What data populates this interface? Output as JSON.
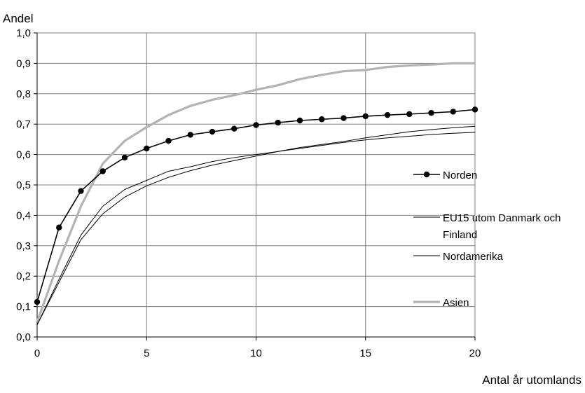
{
  "chart_data": {
    "type": "line",
    "title": "",
    "xlabel": "Antal år utomlands",
    "ylabel": "Andel",
    "xlim": [
      0,
      20
    ],
    "ylim": [
      0,
      1.0
    ],
    "x_ticks": [
      "0",
      "5",
      "10",
      "15",
      "20"
    ],
    "y_ticks": [
      "0,0",
      "0,1",
      "0,2",
      "0,3",
      "0,4",
      "0,5",
      "0,6",
      "0,7",
      "0,8",
      "0,9",
      "1,0"
    ],
    "grid": "vertical-and-horizontal",
    "legend": "right",
    "x": [
      0,
      1,
      2,
      3,
      4,
      5,
      6,
      7,
      8,
      9,
      10,
      11,
      12,
      13,
      14,
      15,
      16,
      17,
      18,
      19,
      20
    ],
    "series": [
      {
        "name": "Norden",
        "color": "#000000",
        "marker": "circle",
        "values": [
          0.115,
          0.36,
          0.48,
          0.545,
          0.59,
          0.62,
          0.645,
          0.665,
          0.675,
          0.685,
          0.697,
          0.705,
          0.712,
          0.716,
          0.72,
          0.726,
          0.73,
          0.733,
          0.737,
          0.741,
          0.748
        ]
      },
      {
        "name": "EU15 utom Danmark och Finland",
        "color": "#000000",
        "marker": "none",
        "values": [
          0.04,
          0.19,
          0.335,
          0.43,
          0.485,
          0.515,
          0.545,
          0.56,
          0.577,
          0.59,
          0.6,
          0.61,
          0.62,
          0.63,
          0.64,
          0.648,
          0.655,
          0.66,
          0.666,
          0.67,
          0.673
        ]
      },
      {
        "name": "Nordamerika",
        "color": "#000000",
        "marker": "none",
        "values": [
          0.04,
          0.18,
          0.32,
          0.405,
          0.46,
          0.497,
          0.525,
          0.547,
          0.565,
          0.58,
          0.595,
          0.61,
          0.623,
          0.633,
          0.643,
          0.655,
          0.665,
          0.675,
          0.682,
          0.688,
          0.693
        ]
      },
      {
        "name": "Asien",
        "color": "#b3b3b3",
        "marker": "none",
        "values": [
          0.05,
          0.25,
          0.43,
          0.57,
          0.645,
          0.69,
          0.73,
          0.76,
          0.78,
          0.795,
          0.813,
          0.828,
          0.848,
          0.862,
          0.874,
          0.878,
          0.888,
          0.893,
          0.896,
          0.9,
          0.9
        ]
      }
    ]
  }
}
